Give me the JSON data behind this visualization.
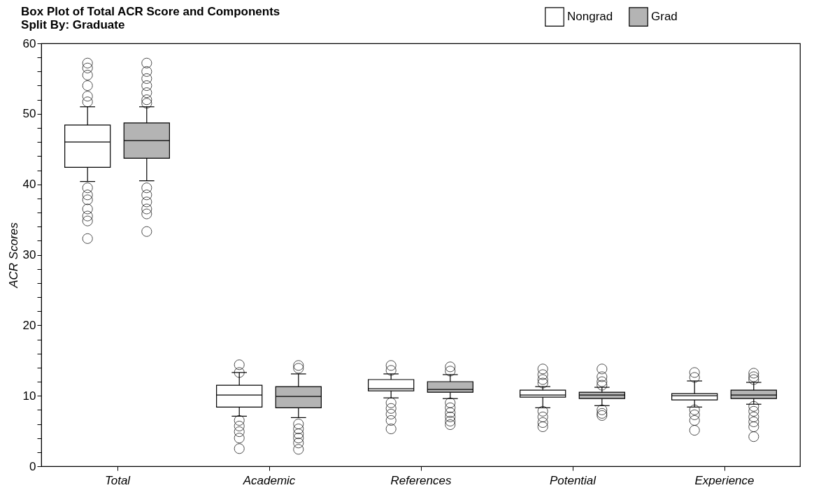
{
  "chart_data": {
    "type": "box",
    "title": "Box Plot of Total ACR Score and Components",
    "subtitle": "Split By: Graduate",
    "ylabel": "ACR Scores",
    "categories": [
      "Total",
      "Academic",
      "References",
      "Potential",
      "Experience"
    ],
    "ylim": [
      0,
      60
    ],
    "yticks": [
      0,
      {
        "value": 2,
        "label": null
      },
      {
        "value": 4,
        "label": null
      },
      {
        "value": 6,
        "label": null
      },
      {
        "value": 8,
        "label": null
      },
      10,
      {
        "value": 12,
        "label": null
      },
      {
        "value": 14,
        "label": null
      },
      {
        "value": 16,
        "label": null
      },
      {
        "value": 18,
        "label": null
      },
      20,
      {
        "value": 22,
        "label": null
      },
      {
        "value": 24,
        "label": null
      },
      {
        "value": 26,
        "label": null
      },
      {
        "value": 28,
        "label": null
      },
      30,
      {
        "value": 32,
        "label": null
      },
      {
        "value": 34,
        "label": null
      },
      {
        "value": 36,
        "label": null
      },
      {
        "value": 38,
        "label": null
      },
      40,
      {
        "value": 42,
        "label": null
      },
      {
        "value": 44,
        "label": null
      },
      {
        "value": 46,
        "label": null
      },
      {
        "value": 48,
        "label": null
      },
      50,
      {
        "value": 52,
        "label": null
      },
      {
        "value": 54,
        "label": null
      },
      {
        "value": 56,
        "label": null
      },
      {
        "value": 58,
        "label": null
      },
      60
    ],
    "grid": false,
    "legend": "top right",
    "marker": "circle",
    "series": [
      {
        "name": "Nongrad",
        "color": "#ffffff",
        "boxes": [
          {
            "low": 40.4,
            "q1": 42.4,
            "median": 46,
            "q3": 48.4,
            "high": 51,
            "outliers": [
              57.2,
              56.5,
              55.5,
              54,
              52.5,
              51.7,
              39.5,
              38.5,
              37.8,
              36.5,
              35.5,
              34.8,
              32.3
            ]
          },
          {
            "low": 7.1,
            "q1": 8.4,
            "median": 10.1,
            "q3": 11.5,
            "high": 13.3,
            "outliers": [
              14.4,
              13.3,
              6.5,
              5.7,
              4.9,
              4,
              2.5
            ]
          },
          {
            "low": 9.7,
            "q1": 10.7,
            "median": 11,
            "q3": 12.3,
            "high": 13.1,
            "outliers": [
              14.3,
              13.6,
              9,
              8.2,
              7.4,
              6.5,
              5.3
            ]
          },
          {
            "low": 8.3,
            "q1": 9.8,
            "median": 10.1,
            "q3": 10.8,
            "high": 11.3,
            "outliers": [
              13.8,
              13,
              12.3,
              11.8,
              7.8,
              7,
              6.2,
              5.6
            ]
          },
          {
            "low": 8.4,
            "q1": 9.4,
            "median": 10,
            "q3": 10.3,
            "high": 12.1,
            "outliers": [
              13.3,
              12.6,
              8,
              7.3,
              6.5,
              5.1
            ]
          }
        ]
      },
      {
        "name": "Grad",
        "color": "#b4b4b4",
        "boxes": [
          {
            "low": 40.5,
            "q1": 43.7,
            "median": 46.2,
            "q3": 48.7,
            "high": 51,
            "outliers": [
              57.2,
              56,
              55,
              54,
              53,
              52,
              51.5,
              39.5,
              38.5,
              37.5,
              36.5,
              35.8,
              33.3
            ]
          },
          {
            "low": 6.9,
            "q1": 8.3,
            "median": 9.9,
            "q3": 11.3,
            "high": 13.1,
            "outliers": [
              14.3,
              13.9,
              6,
              5.3,
              4.6,
              4,
              3.3,
              2.4
            ]
          },
          {
            "low": 9.6,
            "q1": 10.5,
            "median": 10.9,
            "q3": 12,
            "high": 13,
            "outliers": [
              14.1,
              13.5,
              9,
              8.3,
              7.6,
              7,
              6.4,
              5.9
            ]
          },
          {
            "low": 8.6,
            "q1": 9.6,
            "median": 10.1,
            "q3": 10.5,
            "high": 11.2,
            "outliers": [
              13.8,
              12.7,
              12,
              11.5,
              8,
              7.5,
              7.2
            ]
          },
          {
            "low": 8.8,
            "q1": 9.6,
            "median": 10.1,
            "q3": 10.8,
            "high": 11.9,
            "outliers": [
              13.2,
              12.7,
              12.3,
              8.5,
              7.8,
              7,
              6.3,
              5.6,
              4.2
            ]
          }
        ]
      }
    ]
  }
}
